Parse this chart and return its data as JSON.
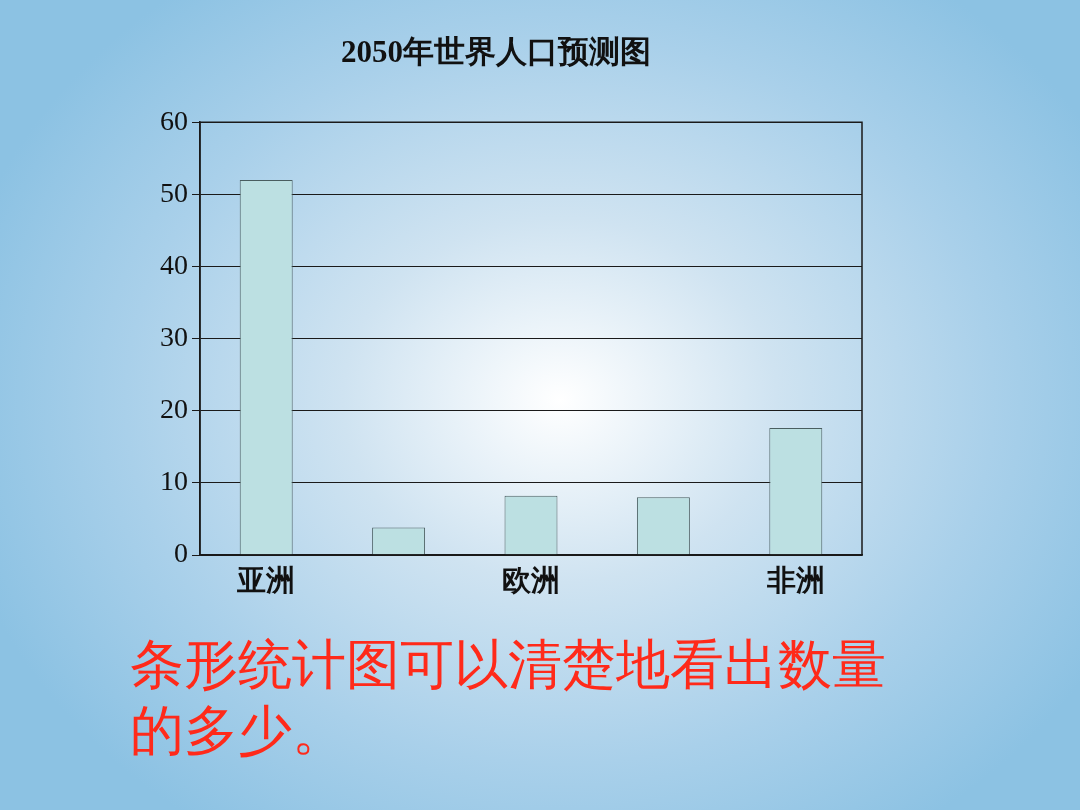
{
  "chart_data": {
    "type": "bar",
    "title": "2050年世界人口预测图",
    "categories": [
      "亚洲",
      null,
      "欧洲",
      null,
      "非洲"
    ],
    "values": [
      52,
      3.8,
      8.2,
      8.0,
      17.6
    ],
    "color": "#bce0e2",
    "ylim": [
      0,
      60
    ],
    "yticks": [
      0,
      10,
      20,
      30,
      40,
      50,
      60
    ],
    "grid": "y",
    "legend": false,
    "annotations": [
      "条形统计图可以清楚地看出数量的多少。"
    ]
  }
}
